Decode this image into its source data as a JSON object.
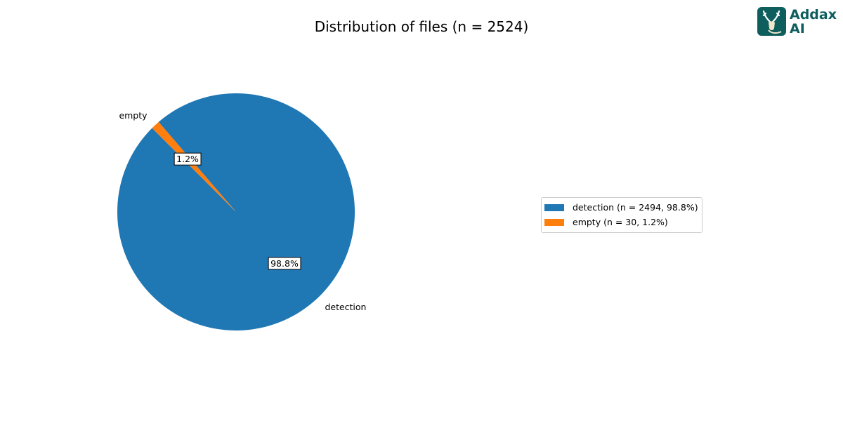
{
  "chart_data": {
    "type": "pie",
    "title": "Distribution of files (n = 2524)",
    "slices": [
      {
        "label": "detection",
        "value": 2494,
        "pct_label": "98.8%",
        "legend": "detection (n = 2494, 98.8%)",
        "color": "#1f77b4"
      },
      {
        "label": "empty",
        "value": 30,
        "pct_label": "1.2%",
        "legend": "empty (n = 30, 1.2%)",
        "color": "#ff7f0e"
      }
    ],
    "start_angle_deg": 135,
    "direction": "counterclockwise",
    "legend_placement": "right"
  },
  "logo": {
    "line1": "Addax",
    "line2": "AI",
    "color": "#0f5e5e"
  }
}
